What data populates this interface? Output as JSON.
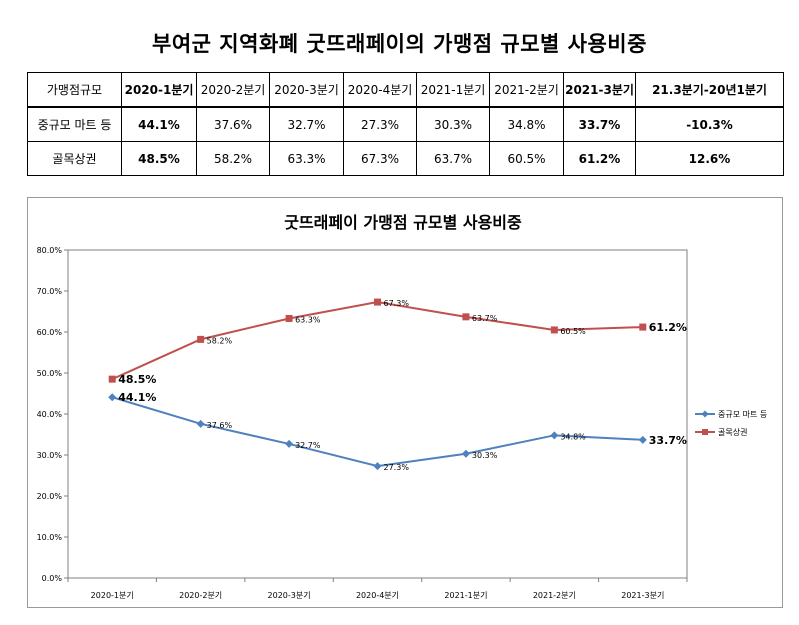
{
  "title": "부여군 지역화폐 굿뜨래페이의 가맹점 규모별 사용비중",
  "table": {
    "header": [
      "가맹점규모",
      "2020-1분기",
      "2020-2분기",
      "2020-3분기",
      "2020-4분기",
      "2021-1분기",
      "2021-2분기",
      "2021-3분기",
      "21.3분기-20년1분기"
    ],
    "rows": [
      {
        "label": "중규모 마트 등",
        "cells": [
          "44.1%",
          "37.6%",
          "32.7%",
          "27.3%",
          "30.3%",
          "34.8%",
          "33.7%",
          "-10.3%"
        ]
      },
      {
        "label": "골목상권",
        "cells": [
          "48.5%",
          "58.2%",
          "63.3%",
          "67.3%",
          "63.7%",
          "60.5%",
          "61.2%",
          "12.6%"
        ]
      }
    ]
  },
  "chart_data": {
    "type": "line",
    "title": "굿뜨래페이 가맹점 규모별 사용비중",
    "categories": [
      "2020-1분기",
      "2020-2분기",
      "2020-3분기",
      "2020-4분기",
      "2021-1분기",
      "2021-2분기",
      "2021-3분기"
    ],
    "series": [
      {
        "name": "중규모 마트 등",
        "values": [
          44.1,
          37.6,
          32.7,
          27.3,
          30.3,
          34.8,
          33.7
        ],
        "color": "#4f81bd",
        "marker": "diamond",
        "labels": [
          "44.1%",
          "37.6%",
          "32.7%",
          "27.3%",
          "30.3%",
          "34.8%",
          "33.7%"
        ]
      },
      {
        "name": "골목상권",
        "values": [
          48.5,
          58.2,
          63.3,
          67.3,
          63.7,
          60.5,
          61.2
        ],
        "color": "#c0504d",
        "marker": "square",
        "labels": [
          "48.5%",
          "58.2%",
          "63.3%",
          "67.3%",
          "63.7%",
          "60.5%",
          "61.2%"
        ]
      }
    ],
    "ylim": [
      0,
      80
    ],
    "yticks": [
      "0.0%",
      "10.0%",
      "20.0%",
      "30.0%",
      "40.0%",
      "50.0%",
      "60.0%",
      "70.0%",
      "80.0%"
    ],
    "grid": false,
    "legend": "right"
  }
}
